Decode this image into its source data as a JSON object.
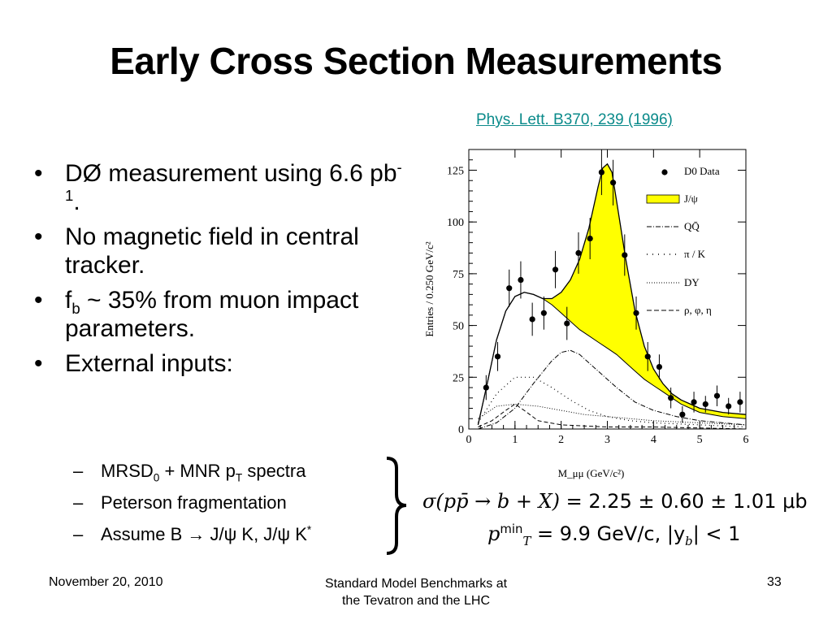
{
  "slide": {
    "title": "Early Cross Section Measurements",
    "reference": "Phys. Lett. B370, 239 (1996)",
    "bullets": [
      {
        "pre": "DØ measurement using 6.6 pb",
        "sup": "-1",
        "post": "."
      },
      {
        "text": "No magnetic field in central tracker."
      },
      {
        "pre": "f",
        "sub": "b",
        "post": " ~ 35% from muon impact parameters."
      },
      {
        "text": "External inputs:"
      }
    ],
    "subbullets": [
      {
        "a": "MRSD",
        "a_sub": "0",
        "b": " + MNR p",
        "b_sub": "T",
        "c": " spectra"
      },
      {
        "text": "Peterson fragmentation"
      },
      {
        "text": "Assume B",
        "arrow": "→",
        "rest": " J/ψ K, J/ψ K",
        "sup": "*"
      }
    ],
    "formula": {
      "line1_lhs": "σ(pp̄ → b + X)",
      "line1_rhs": "= 2.25 ± 0.60 ± 1.01 μb",
      "line2": "p",
      "line2_sup": "min",
      "line2_sub": "T",
      "line2_rest": "= 9.9 GeV/c,  |y",
      "line2_sub2": "b",
      "line2_end": "| < 1"
    },
    "footer": {
      "date": "November 20, 2010",
      "center_line1": "Standard Model Benchmarks at",
      "center_line2": "the Tevatron and the LHC",
      "page": "33"
    }
  },
  "chart_data": {
    "type": "scatter",
    "xlabel": "M_μμ (GeV/c²)",
    "ylabel": "Entries / 0.250 GeV/c²",
    "xlim": [
      0,
      6
    ],
    "ylim": [
      0,
      135
    ],
    "xticks": [
      0,
      1,
      2,
      3,
      4,
      5,
      6
    ],
    "yticks": [
      0,
      25,
      50,
      75,
      100,
      125
    ],
    "legend": {
      "placement": "top-right",
      "entries": [
        "D0 Data",
        "J/ψ",
        "QQ̄",
        "π / K",
        "DY",
        "ρ, φ, η"
      ]
    },
    "data": {
      "name": "D0 Data",
      "x": [
        0.375,
        0.625,
        0.875,
        1.125,
        1.375,
        1.625,
        1.875,
        2.125,
        2.375,
        2.625,
        2.875,
        3.125,
        3.375,
        3.625,
        3.875,
        4.125,
        4.375,
        4.625,
        4.875,
        5.125,
        5.375,
        5.625,
        5.875
      ],
      "y": [
        20,
        35,
        68,
        72,
        53,
        56,
        77,
        51,
        85,
        92,
        124,
        119,
        84,
        56,
        35,
        30,
        15,
        7,
        13,
        12,
        16,
        11,
        13
      ],
      "err": [
        6,
        7,
        9,
        9,
        8,
        8,
        9,
        8,
        10,
        10,
        11,
        11,
        10,
        8,
        7,
        6,
        5,
        4,
        5,
        4,
        5,
        4,
        5
      ]
    },
    "total_x": [
      0.2,
      0.4,
      0.6,
      0.8,
      1.0,
      1.2,
      1.4,
      1.6,
      1.8,
      2.0,
      2.2,
      2.4,
      2.6,
      2.8,
      2.9,
      3.0,
      3.1,
      3.2,
      3.4,
      3.6,
      3.8,
      4.0,
      4.2,
      4.4,
      4.6,
      4.8,
      5.0,
      5.5,
      6.0
    ],
    "total_y": [
      2,
      22,
      43,
      57,
      64,
      66,
      65,
      63,
      63,
      66,
      72,
      82,
      97,
      117,
      126,
      128,
      124,
      110,
      82,
      57,
      40,
      29,
      22,
      17,
      14,
      12,
      10,
      8,
      7
    ],
    "background_x": [
      0.2,
      0.4,
      0.6,
      0.8,
      1.0,
      1.2,
      1.4,
      1.6,
      1.8,
      2.0,
      2.2,
      2.4,
      2.6,
      2.8,
      3.0,
      3.2,
      3.4,
      3.6,
      3.8,
      4.0,
      4.2,
      4.4,
      4.6,
      4.8,
      5.0,
      5.5,
      6.0
    ],
    "background_y": [
      2,
      22,
      43,
      57,
      64,
      66,
      65,
      63,
      60,
      56,
      52,
      48,
      45,
      42,
      39,
      36,
      32,
      28,
      24,
      21,
      18,
      15,
      12,
      10,
      8,
      6,
      5
    ],
    "qq_x": [
      0.2,
      0.6,
      1.0,
      1.4,
      1.8,
      2.0,
      2.2,
      2.4,
      2.8,
      3.2,
      3.6,
      4.0,
      4.5,
      5.0,
      5.5,
      6.0
    ],
    "qq_y": [
      0,
      3,
      10,
      22,
      33,
      37,
      38,
      36,
      28,
      20,
      13,
      9,
      6,
      4,
      3,
      2
    ],
    "pik_x": [
      0.2,
      0.6,
      1.0,
      1.4,
      1.8,
      2.2,
      2.6,
      3.0,
      3.5,
      4.0,
      5.0,
      6.0
    ],
    "pik_y": [
      3,
      17,
      25,
      25,
      20,
      14,
      9,
      6,
      4,
      3,
      2,
      1
    ],
    "dy_x": [
      0.2,
      0.6,
      1.0,
      1.5,
      2.0,
      2.5,
      3.0,
      4.0,
      5.0,
      6.0
    ],
    "dy_y": [
      5,
      11,
      12,
      11,
      9,
      7,
      6,
      4,
      3,
      2
    ],
    "rho_x": [
      0.2,
      0.5,
      0.8,
      1.0,
      1.2,
      1.5,
      2.0,
      3.0,
      4.0,
      6.0
    ],
    "rho_y": [
      1,
      4,
      9,
      12,
      9,
      4,
      2,
      1,
      1,
      0
    ],
    "colors": {
      "jpsi_fill": "#ffff00",
      "line": "#000000"
    }
  }
}
